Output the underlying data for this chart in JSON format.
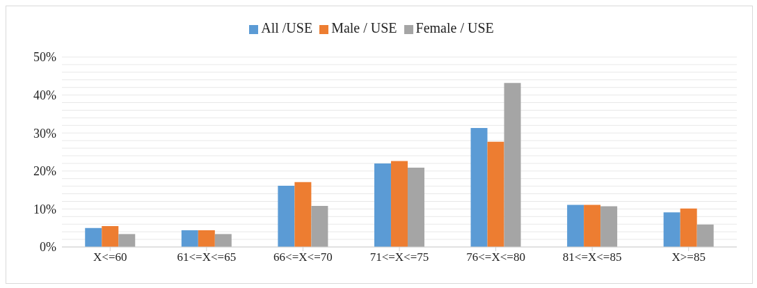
{
  "chart_data": {
    "type": "bar",
    "categories": [
      "X<=60",
      "61<=X<=65",
      "66<=X<=70",
      "71<=X<=75",
      "76<=X<=80",
      "81<=X<=85",
      "X>=85"
    ],
    "series": [
      {
        "name": "All /USE",
        "color": "#5b9bd5",
        "values": [
          5.0,
          4.4,
          16.1,
          22.0,
          31.3,
          11.1,
          9.1
        ]
      },
      {
        "name": "Male / USE",
        "color": "#ed7d31",
        "values": [
          5.5,
          4.4,
          17.1,
          22.6,
          27.7,
          11.1,
          10.1
        ]
      },
      {
        "name": "Female / USE",
        "color": "#a5a5a5",
        "values": [
          3.4,
          3.4,
          10.8,
          20.9,
          43.2,
          10.7,
          5.9
        ]
      }
    ],
    "ylim": [
      0,
      50
    ],
    "yticks": [
      {
        "value": 0,
        "label": "0%"
      },
      {
        "value": 2,
        "label": null
      },
      {
        "value": 4,
        "label": null
      },
      {
        "value": 6,
        "label": null
      },
      {
        "value": 8,
        "label": null
      },
      {
        "value": 10,
        "label": "10%"
      },
      {
        "value": 12,
        "label": null
      },
      {
        "value": 14,
        "label": null
      },
      {
        "value": 16,
        "label": null
      },
      {
        "value": 18,
        "label": null
      },
      {
        "value": 20,
        "label": "20%"
      },
      {
        "value": 22,
        "label": null
      },
      {
        "value": 24,
        "label": null
      },
      {
        "value": 26,
        "label": null
      },
      {
        "value": 28,
        "label": null
      },
      {
        "value": 30,
        "label": "30%"
      },
      {
        "value": 32,
        "label": null
      },
      {
        "value": 34,
        "label": null
      },
      {
        "value": 36,
        "label": null
      },
      {
        "value": 38,
        "label": null
      },
      {
        "value": 40,
        "label": "40%"
      },
      {
        "value": 42,
        "label": null
      },
      {
        "value": 44,
        "label": null
      },
      {
        "value": 46,
        "label": null
      },
      {
        "value": 48,
        "label": null
      },
      {
        "value": 50,
        "label": "50%"
      }
    ],
    "grid": "y",
    "legend": "top"
  }
}
